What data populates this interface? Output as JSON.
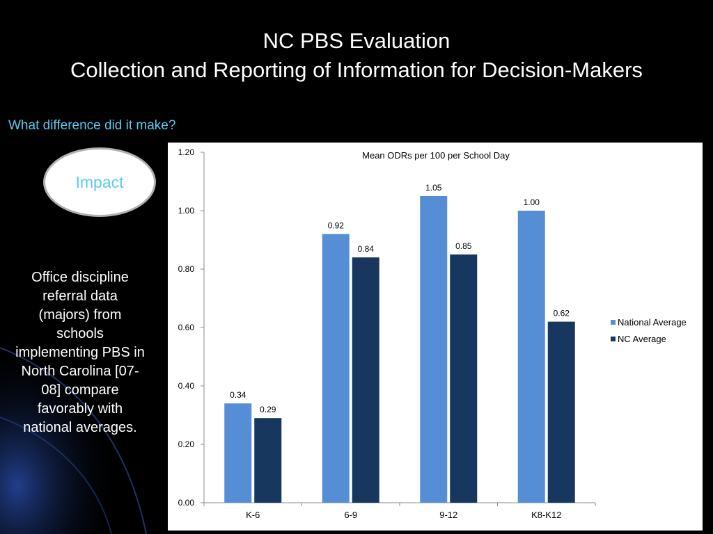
{
  "slide": {
    "title_line1": "NC PBS Evaluation",
    "title_line2": "Collection and Reporting of Information for Decision-Makers",
    "subtitle": "What difference did it make?",
    "impact_label": "Impact",
    "description": "Office discipline referral data (majors) from schools implementing PBS in North Carolina [07-08] compare favorably with national averages.",
    "colors": {
      "background": "#000000",
      "subtitle": "#5cc8f0",
      "swoosh": "#1a3a8a"
    }
  },
  "chart_data": {
    "type": "bar",
    "title": "Mean ODRs per 100 per School Day",
    "xlabel": "",
    "ylabel": "",
    "categories": [
      "K-6",
      "6-9",
      "9-12",
      "K8-K12"
    ],
    "series": [
      {
        "name": "National Average",
        "values": [
          0.34,
          0.92,
          1.05,
          1.0
        ],
        "color": "#558ed5",
        "labels": [
          "0.34",
          "0.92",
          "1.05",
          "1.00"
        ]
      },
      {
        "name": "NC Average",
        "values": [
          0.29,
          0.84,
          0.85,
          0.62
        ],
        "color": "#17375e",
        "labels": [
          "0.29",
          "0.84",
          "0.85",
          "0.62"
        ]
      }
    ],
    "ylim": [
      0,
      1.2
    ],
    "yticks": [
      "0.00",
      "0.20",
      "0.40",
      "0.60",
      "0.80",
      "1.00",
      "1.20"
    ],
    "grid": false,
    "legend": "right"
  }
}
